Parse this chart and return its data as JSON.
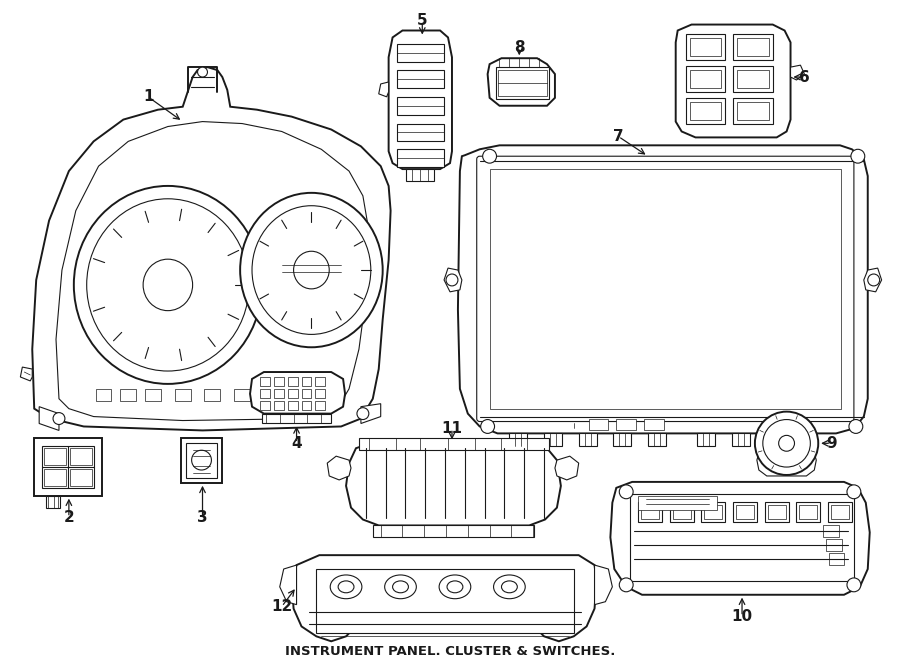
{
  "title": "INSTRUMENT PANEL. CLUSTER & SWITCHES.",
  "background_color": "#ffffff",
  "line_color": "#1a1a1a",
  "fig_width": 9.0,
  "fig_height": 6.62,
  "dpi": 100
}
